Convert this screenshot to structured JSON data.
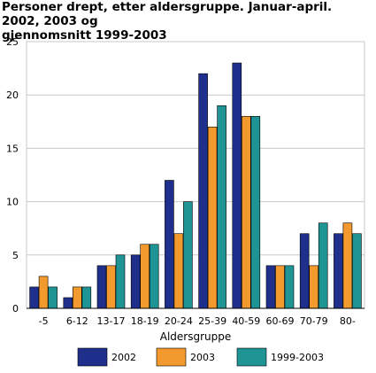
{
  "chart_data": {
    "type": "bar",
    "title": "Personer drept, etter aldersgruppe. Januar-april. 2002, 2003 og\ngjennomsnitt 1999-2003",
    "xlabel": "Aldersgruppe",
    "ylabel": "",
    "ylim": [
      0,
      25
    ],
    "yticks": [
      0,
      5,
      10,
      15,
      20,
      25
    ],
    "grid": true,
    "legend_position": "bottom",
    "categories": [
      "-5",
      "6-12",
      "13-17",
      "18-19",
      "20-24",
      "25-39",
      "40-59",
      "60-69",
      "70-79",
      "80-"
    ],
    "series": [
      {
        "name": "2002",
        "color": "#1f2f8c",
        "values": [
          2,
          1,
          4,
          5,
          12,
          22,
          23,
          4,
          7,
          7
        ]
      },
      {
        "name": "2003",
        "color": "#f39a2e",
        "values": [
          3,
          2,
          4,
          6,
          7,
          17,
          18,
          4,
          4,
          8
        ]
      },
      {
        "name": "1999-2003",
        "color": "#1e9494",
        "values": [
          2,
          2,
          5,
          6,
          10,
          19,
          18,
          4,
          8,
          7
        ]
      }
    ]
  }
}
